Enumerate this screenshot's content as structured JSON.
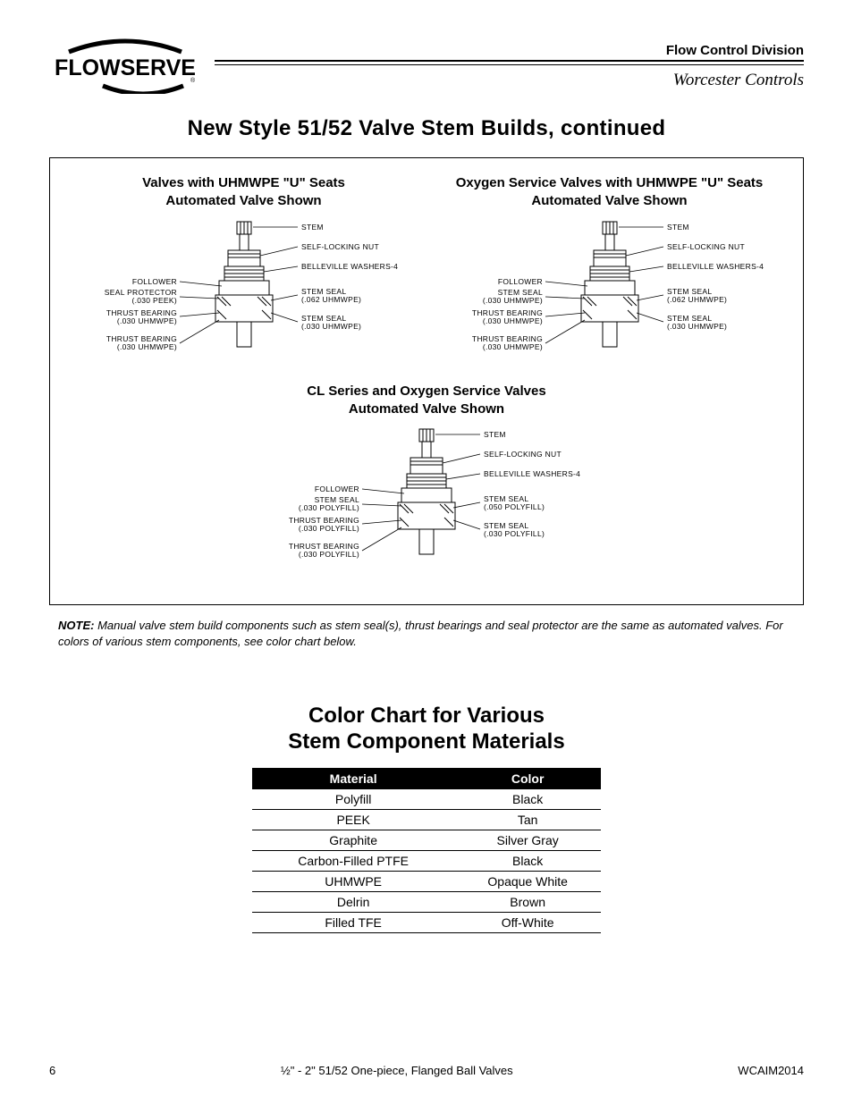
{
  "header": {
    "logo_text": "FLOWSERVE",
    "division": "Flow Control Division",
    "subbrand": "Worcester Controls"
  },
  "page_title": "New Style 51/52 Valve Stem Builds, continued",
  "diagrams": {
    "d1": {
      "title_l1": "Valves with UHMWPE \"U\" Seats",
      "title_l2": "Automated Valve Shown",
      "left_labels": [
        "FOLLOWER",
        "SEAL PROTECTOR\n(.030 PEEK)",
        "THRUST BEARING\n(.030 UHMWPE)",
        "THRUST BEARING\n(.030 UHMWPE)"
      ],
      "right_labels": [
        "STEM",
        "SELF-LOCKING NUT",
        "BELLEVILLE WASHERS-4",
        "STEM SEAL\n(.062 UHMWPE)",
        "STEM SEAL\n(.030 UHMWPE)"
      ]
    },
    "d2": {
      "title_l1": "Oxygen Service Valves with UHMWPE \"U\" Seats",
      "title_l2": "Automated Valve Shown",
      "left_labels": [
        "FOLLOWER",
        "STEM SEAL\n(.030 UHMWPE)",
        "THRUST BEARING\n(.030 UHMWPE)",
        "THRUST BEARING\n(.030 UHMWPE)"
      ],
      "right_labels": [
        "STEM",
        "SELF-LOCKING NUT",
        "BELLEVILLE WASHERS-4",
        "STEM SEAL\n(.062 UHMWPE)",
        "STEM SEAL\n(.030 UHMWPE)"
      ]
    },
    "d3": {
      "title_l1": "CL Series and Oxygen Service Valves",
      "title_l2": "Automated Valve Shown",
      "left_labels": [
        "FOLLOWER",
        "STEM SEAL\n(.030 POLYFILL)",
        "THRUST BEARING\n(.030 POLYFILL)",
        "THRUST BEARING\n(.030 POLYFILL)"
      ],
      "right_labels": [
        "STEM",
        "SELF-LOCKING NUT",
        "BELLEVILLE WASHERS-4",
        "STEM SEAL\n(.050 POLYFILL)",
        "STEM SEAL\n(.030 POLYFILL)"
      ]
    }
  },
  "note": {
    "label": "NOTE:",
    "text": " Manual valve stem build components such as stem seal(s), thrust bearings and seal protector are the same as automated valves. For colors of various stem components, see color chart below."
  },
  "color_chart": {
    "title_l1": "Color Chart for Various",
    "title_l2": "Stem Component Materials",
    "headers": {
      "c1": "Material",
      "c2": "Color"
    },
    "rows": [
      {
        "material": "Polyfill",
        "color": "Black"
      },
      {
        "material": "PEEK",
        "color": "Tan"
      },
      {
        "material": "Graphite",
        "color": "Silver Gray"
      },
      {
        "material": "Carbon-Filled PTFE",
        "color": "Black"
      },
      {
        "material": "UHMWPE",
        "color": "Opaque White"
      },
      {
        "material": "Delrin",
        "color": "Brown"
      },
      {
        "material": "Filled TFE",
        "color": "Off-White"
      }
    ]
  },
  "footer": {
    "page": "6",
    "center": "½\" - 2\" 51/52 One-piece, Flanged Ball Valves",
    "doc": "WCAIM2014"
  },
  "colors": {
    "text": "#000000",
    "bg": "#ffffff",
    "table_header_bg": "#000000",
    "table_header_fg": "#ffffff",
    "rule": "#000000"
  }
}
